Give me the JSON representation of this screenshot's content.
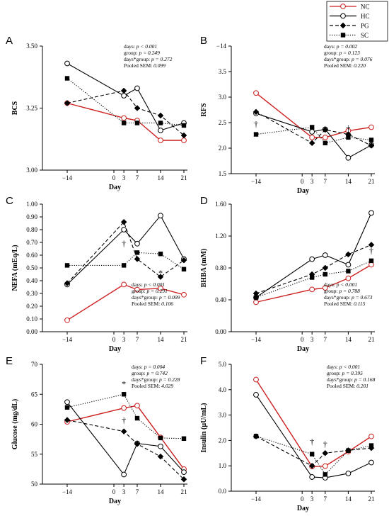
{
  "legend": {
    "entries": [
      {
        "label": "NC",
        "color": "#cc1f1f",
        "dash": "solid",
        "marker": "open-circle",
        "markerColor": "#cc1f1f"
      },
      {
        "label": "HC",
        "color": "#000000",
        "dash": "solid",
        "marker": "open-circle",
        "markerColor": "#000000"
      },
      {
        "label": "PG",
        "color": "#000000",
        "dash": "dashed",
        "marker": "diamond",
        "markerColor": "#000000"
      },
      {
        "label": "SC",
        "color": "#000000",
        "dash": "dotted",
        "marker": "square",
        "markerColor": "#000000"
      }
    ]
  },
  "chart_data": [
    {
      "letter": "A",
      "type": "line",
      "ylabel": "BCS",
      "xlabel": "Day",
      "x": [
        -14,
        3,
        7,
        14,
        21
      ],
      "xticks": [
        "-14",
        "0",
        "3",
        "7",
        "14",
        "21"
      ],
      "yticks": [
        "3.00",
        "3.25",
        "3.50"
      ],
      "ylim": [
        3.0,
        3.5
      ],
      "stats": [
        {
          "label": "days: ",
          "value": "p < 0.001"
        },
        {
          "label": "group: ",
          "value": "p = 0.249"
        },
        {
          "label": "days*group: ",
          "value": "p = 0.272"
        },
        {
          "label": "Pooled SEM: ",
          "value": "0.099"
        }
      ],
      "annotations": [],
      "series": [
        {
          "name": "NC",
          "values": [
            3.27,
            3.21,
            3.2,
            3.12,
            3.12
          ]
        },
        {
          "name": "HC",
          "values": [
            3.43,
            3.3,
            3.33,
            3.16,
            3.19
          ]
        },
        {
          "name": "PG",
          "values": [
            3.27,
            3.32,
            3.25,
            3.22,
            3.14
          ]
        },
        {
          "name": "SC",
          "values": [
            3.37,
            3.19,
            3.19,
            3.19,
            3.18
          ]
        }
      ]
    },
    {
      "letter": "B",
      "type": "line",
      "ylabel": "RFS",
      "xlabel": "Day",
      "x": [
        -14,
        3,
        7,
        14,
        21
      ],
      "xticks": [
        "-14",
        "0",
        "3",
        "7",
        "14",
        "21"
      ],
      "yticks": [
        "1.5",
        "2.0",
        "2.5",
        "3.0",
        "3.5",
        "−14"
      ],
      "ylim": [
        1.5,
        4.0
      ],
      "stats": [
        {
          "label": "days: ",
          "value": "p = 0.002"
        },
        {
          "label": "group: ",
          "value": "p = 0.123"
        },
        {
          "label": "days*group: ",
          "value": "p = 0.076"
        },
        {
          "label": "Pooled SEM: ",
          "value": "0.220"
        }
      ],
      "annotations": [
        {
          "text": "†",
          "x": -14,
          "y": 2.42
        },
        {
          "text": "†",
          "x": 14,
          "y": 2.33
        }
      ],
      "series": [
        {
          "name": "NC",
          "values": [
            3.08,
            2.21,
            2.21,
            2.34,
            2.41
          ]
        },
        {
          "name": "HC",
          "values": [
            2.68,
            2.32,
            2.37,
            1.81,
            2.06
          ]
        },
        {
          "name": "PG",
          "values": [
            2.71,
            2.1,
            2.36,
            2.27,
            2.05
          ]
        },
        {
          "name": "SC",
          "values": [
            2.27,
            2.41,
            2.1,
            2.21,
            2.16
          ]
        }
      ]
    },
    {
      "letter": "C",
      "type": "line",
      "ylabel": "NEFA (mEq/L)",
      "xlabel": "Day",
      "x": [
        -14,
        3,
        7,
        14,
        21
      ],
      "xticks": [
        "-14",
        "0",
        "3",
        "7",
        "14",
        "21"
      ],
      "yticks": [
        "0.00",
        "0.10",
        "0.20",
        "0.30",
        "0.40",
        "0.50",
        "0.60",
        "0.70",
        "0.80",
        "0.90",
        "1.00"
      ],
      "ylim": [
        0.0,
        1.0
      ],
      "stats": [
        {
          "label": "days: ",
          "value": "p < 0.001"
        },
        {
          "label": "group: ",
          "value": "p = 0.291"
        },
        {
          "label": "days*group: ",
          "value": "p = 0.009"
        },
        {
          "label": "Pooled SEM: ",
          "value": "0.106"
        }
      ],
      "annotations": [
        {
          "text": "†",
          "x": 3,
          "y": 0.67
        },
        {
          "text": "*",
          "x": 14,
          "y": 0.44
        }
      ],
      "series": [
        {
          "name": "NC",
          "values": [
            0.09,
            0.37,
            0.33,
            0.34,
            0.29
          ]
        },
        {
          "name": "HC",
          "values": [
            0.37,
            0.8,
            0.69,
            0.91,
            0.57
          ]
        },
        {
          "name": "PG",
          "values": [
            0.38,
            0.86,
            0.57,
            0.43,
            0.56
          ]
        },
        {
          "name": "SC",
          "values": [
            0.52,
            0.52,
            0.62,
            0.61,
            0.49
          ]
        }
      ]
    },
    {
      "letter": "D",
      "type": "line",
      "ylabel": "BHBA (mM)",
      "xlabel": "Day",
      "x": [
        -14,
        3,
        7,
        14,
        21
      ],
      "xticks": [
        "-14",
        "0",
        "3",
        "7",
        "14",
        "21"
      ],
      "yticks": [
        "0.00",
        "0.40",
        "0.80",
        "1.20",
        "1.60"
      ],
      "ylim": [
        0.0,
        1.6
      ],
      "stats": [
        {
          "label": "days: ",
          "value": "p < 0.001"
        },
        {
          "label": "group: ",
          "value": "p = 0.788"
        },
        {
          "label": "days*group: ",
          "value": "p = 0.673"
        },
        {
          "label": "Pooled SEM: ",
          "value": "0.115"
        }
      ],
      "annotations": [
        {
          "text": "†",
          "x": 21,
          "y": 0.98
        }
      ],
      "series": [
        {
          "name": "NC",
          "values": [
            0.37,
            0.53,
            0.55,
            0.67,
            0.84
          ]
        },
        {
          "name": "HC",
          "values": [
            0.43,
            0.91,
            0.96,
            0.84,
            1.49
          ]
        },
        {
          "name": "PG",
          "values": [
            0.48,
            0.72,
            0.8,
            0.97,
            1.09
          ]
        },
        {
          "name": "SC",
          "values": [
            0.43,
            0.68,
            0.72,
            0.76,
            0.89
          ]
        }
      ]
    },
    {
      "letter": "E",
      "type": "line",
      "ylabel": "Glucose (mg/dL)",
      "xlabel": "Day",
      "x": [
        -14,
        3,
        7,
        14,
        21
      ],
      "xticks": [
        "-14",
        "0",
        "3",
        "7",
        "14",
        "21"
      ],
      "yticks": [
        "50",
        "55",
        "60",
        "65",
        "70"
      ],
      "ylim": [
        50,
        70
      ],
      "stats": [
        {
          "label": "days: ",
          "value": "p = 0.004"
        },
        {
          "label": "group: ",
          "value": "p = 0.742"
        },
        {
          "label": "days*group: ",
          "value": "p = 0.228"
        },
        {
          "label": "Pooled SEM: ",
          "value": "4.029"
        }
      ],
      "annotations": [
        {
          "text": "*",
          "x": 3,
          "y": 66.3
        },
        {
          "text": "†",
          "x": 3,
          "y": 60.2
        }
      ],
      "series": [
        {
          "name": "NC",
          "values": [
            60.4,
            62.7,
            63.1,
            57.8,
            52.5
          ]
        },
        {
          "name": "HC",
          "values": [
            63.7,
            51.6,
            56.8,
            56.3,
            52.0
          ]
        },
        {
          "name": "PG",
          "values": [
            60.7,
            58.8,
            56.7,
            54.6,
            50.8
          ]
        },
        {
          "name": "SC",
          "values": [
            62.8,
            65.0,
            61.0,
            57.7,
            57.6
          ]
        }
      ]
    },
    {
      "letter": "F",
      "type": "line",
      "ylabel": "Insulin (µU/mL)",
      "xlabel": "Day",
      "x": [
        -14,
        3,
        7,
        14,
        21
      ],
      "xticks": [
        "-14",
        "0",
        "3",
        "7",
        "14",
        "21"
      ],
      "yticks": [
        "0.0",
        "1.0",
        "2.0",
        "3.0",
        "4.0",
        "5.0"
      ],
      "ylim": [
        0.0,
        5.0
      ],
      "stats": [
        {
          "label": "days: ",
          "value": "p < 0.001"
        },
        {
          "label": "group: ",
          "value": "p = 0.395"
        },
        {
          "label": "days*group: ",
          "value": "p = 0.168"
        },
        {
          "label": "Pooled SEM: ",
          "value": "0.201"
        }
      ],
      "annotations": [
        {
          "text": "†",
          "x": 3,
          "y": 1.85
        },
        {
          "text": "†",
          "x": 7,
          "y": 1.75
        }
      ],
      "series": [
        {
          "name": "NC",
          "values": [
            4.4,
            0.97,
            0.99,
            1.56,
            2.16
          ]
        },
        {
          "name": "HC",
          "values": [
            3.8,
            0.56,
            0.53,
            0.7,
            1.13
          ]
        },
        {
          "name": "PG",
          "values": [
            2.16,
            1.0,
            1.5,
            1.61,
            1.7
          ]
        },
        {
          "name": "SC",
          "values": [
            2.17,
            1.46,
            0.66,
            1.6,
            1.8
          ]
        }
      ]
    }
  ]
}
